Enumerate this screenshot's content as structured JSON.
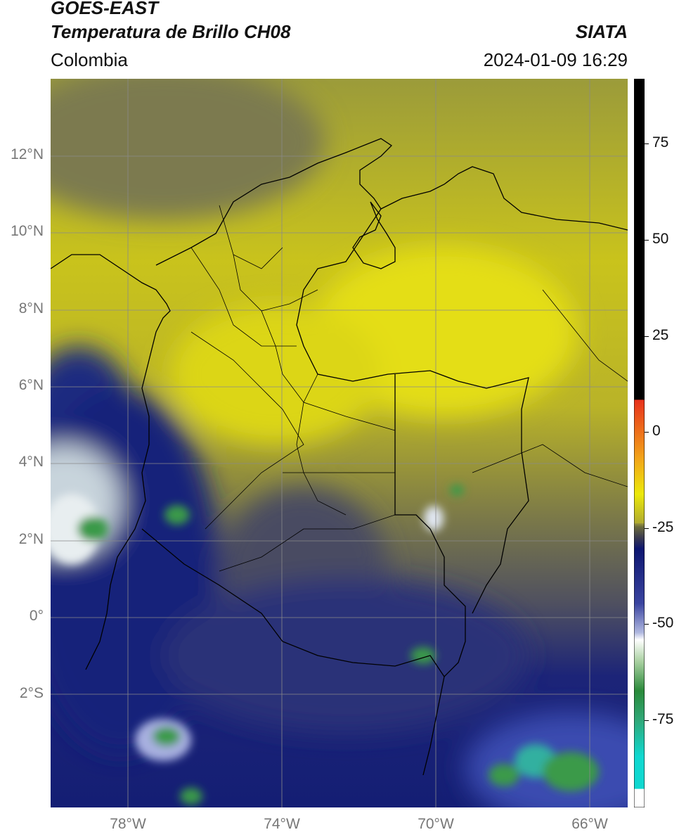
{
  "header": {
    "satellite": "GOES-EAST",
    "product": "Temperatura de Brillo CH08",
    "region": "Colombia",
    "source": "SIATA",
    "datetime": "2024-01-09 16:29"
  },
  "map": {
    "lat_labels": [
      "12°N",
      "10°N",
      "8°N",
      "6°N",
      "4°N",
      "2°N",
      "0°",
      "2°S"
    ],
    "lon_labels": [
      "78°W",
      "74°W",
      "70°W",
      "66°W"
    ],
    "extent": {
      "lon_min": -80,
      "lon_max": -65,
      "lat_min": -5,
      "lat_max": 14
    }
  },
  "colorbar": {
    "ticks": [
      "75",
      "50",
      "25",
      "0",
      "-25",
      "-50",
      "-75"
    ],
    "range": [
      -95,
      90
    ],
    "colors": {
      "hot": "#000000",
      "red": "#e8321c",
      "orange": "#f2a31a",
      "yellow": "#ece90a",
      "olive": "#6b6b3c",
      "navy": "#0d1670",
      "white": "#ffffff",
      "green": "#2a8a3a",
      "cyan": "#10d8d0"
    }
  }
}
